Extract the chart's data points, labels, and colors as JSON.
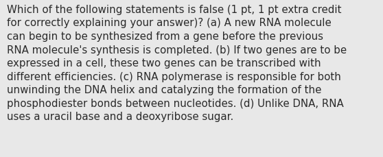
{
  "lines": [
    "Which of the following statements is false (1 pt, 1 pt extra credit",
    "for correctly explaining your answer)? (a) A new RNA molecule",
    "can begin to be synthesized from a gene before the previous",
    "RNA molecule's synthesis is completed. (b) If two genes are to be",
    "expressed in a cell, these two genes can be transcribed with",
    "different efficiencies. (c) RNA polymerase is responsible for both",
    "unwinding the DNA helix and catalyzing the formation of the",
    "phosphodiester bonds between nucleotides. (d) Unlike DNA, RNA",
    "uses a uracil base and a deoxyribose sugar."
  ],
  "background_color": "#e8e8e8",
  "text_color": "#2a2a2a",
  "font_size": 10.8,
  "font_family": "DejaVu Sans",
  "fig_width": 5.58,
  "fig_height": 2.3,
  "dpi": 100
}
